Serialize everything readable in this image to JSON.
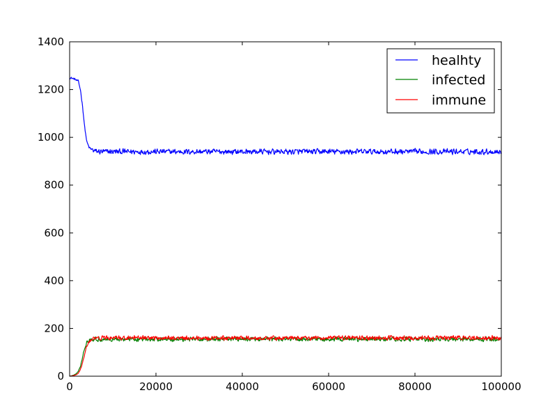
{
  "chart_data": {
    "type": "line",
    "title": "",
    "xlabel": "",
    "ylabel": "",
    "xlim": [
      0,
      100000
    ],
    "ylim": [
      0,
      1400
    ],
    "xticks": [
      0,
      20000,
      40000,
      60000,
      80000,
      100000
    ],
    "yticks": [
      0,
      200,
      400,
      600,
      800,
      1000,
      1200,
      1400
    ],
    "xtick_labels": [
      "0",
      "20000",
      "40000",
      "60000",
      "80000",
      "100000"
    ],
    "ytick_labels": [
      "0",
      "200",
      "400",
      "600",
      "800",
      "1000",
      "1200",
      "1400"
    ],
    "grid": false,
    "legend_position": "upper right",
    "series": [
      {
        "name": "healhty",
        "color": "#0000ff",
        "x": [
          0,
          1000,
          2000,
          2500,
          3000,
          3500,
          4000,
          4500,
          5000,
          5500,
          6000,
          7000,
          8000,
          10000,
          15000,
          20000,
          25000,
          30000,
          35000,
          40000,
          45000,
          50000,
          55000,
          60000,
          65000,
          70000,
          75000,
          80000,
          85000,
          90000,
          95000,
          100000
        ],
        "values": [
          1250,
          1245,
          1235,
          1200,
          1130,
          1040,
          980,
          958,
          950,
          945,
          942,
          940,
          940,
          940,
          940,
          940,
          940,
          940,
          940,
          940,
          940,
          940,
          940,
          940,
          940,
          940,
          940,
          940,
          940,
          940,
          940,
          940
        ],
        "noise_amplitude": 14
      },
      {
        "name": "infected",
        "color": "#008000",
        "x": [
          0,
          500,
          1000,
          1500,
          2000,
          2500,
          3000,
          3500,
          4000,
          4500,
          5000,
          6000,
          7000,
          8000,
          10000,
          15000,
          20000,
          30000,
          40000,
          50000,
          60000,
          70000,
          80000,
          90000,
          100000
        ],
        "values": [
          0,
          2,
          5,
          10,
          20,
          40,
          80,
          120,
          145,
          155,
          155,
          155,
          155,
          155,
          155,
          155,
          155,
          155,
          155,
          155,
          155,
          155,
          155,
          155,
          155
        ],
        "noise_amplitude": 11
      },
      {
        "name": "immune",
        "color": "#ff0000",
        "x": [
          0,
          500,
          1000,
          1500,
          2000,
          2500,
          3000,
          3500,
          4000,
          4500,
          5000,
          6000,
          7000,
          8000,
          10000,
          15000,
          20000,
          30000,
          40000,
          50000,
          60000,
          70000,
          80000,
          90000,
          100000
        ],
        "values": [
          0,
          1,
          3,
          6,
          12,
          28,
          55,
          95,
          125,
          145,
          152,
          158,
          160,
          160,
          160,
          160,
          160,
          160,
          160,
          160,
          160,
          160,
          160,
          160,
          160
        ],
        "noise_amplitude": 11
      }
    ]
  }
}
